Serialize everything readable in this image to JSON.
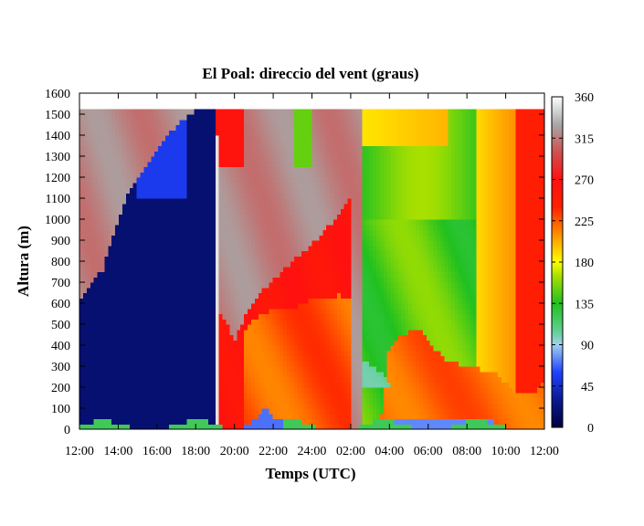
{
  "chart_data": {
    "type": "heatmap",
    "title": "El Poal: direccio del vent (graus)",
    "xlabel": "Temps (UTC)",
    "ylabel": "Altura (m)",
    "x_tick_labels": [
      "12:00",
      "14:00",
      "16:00",
      "18:00",
      "20:00",
      "22:00",
      "24:00",
      "02:00",
      "04:00",
      "06:00",
      "08:00",
      "10:00",
      "12:00"
    ],
    "y_ticks": [
      0,
      100,
      200,
      300,
      400,
      500,
      600,
      700,
      800,
      900,
      1000,
      1100,
      1200,
      1300,
      1400,
      1500,
      1600
    ],
    "ylim": [
      0,
      1600
    ],
    "x_range_hours": [
      0,
      24
    ],
    "colorbar": {
      "ticks": [
        0,
        45,
        90,
        135,
        180,
        225,
        270,
        315,
        360
      ],
      "range": [
        0,
        360
      ],
      "stops": [
        {
          "value": 0,
          "color": "#000040"
        },
        {
          "value": 30,
          "color": "#0a1a90"
        },
        {
          "value": 60,
          "color": "#2040ff"
        },
        {
          "value": 90,
          "color": "#a0d0f0"
        },
        {
          "value": 105,
          "color": "#60d090"
        },
        {
          "value": 135,
          "color": "#20c020"
        },
        {
          "value": 165,
          "color": "#a8e000"
        },
        {
          "value": 180,
          "color": "#ffff00"
        },
        {
          "value": 210,
          "color": "#ff9000"
        },
        {
          "value": 240,
          "color": "#ff2000"
        },
        {
          "value": 270,
          "color": "#ff1010"
        },
        {
          "value": 300,
          "color": "#d05050"
        },
        {
          "value": 330,
          "color": "#a8a8a8"
        },
        {
          "value": 360,
          "color": "#ffffff"
        }
      ]
    },
    "data_height_range_m": [
      0,
      1525
    ],
    "grid": false
  }
}
